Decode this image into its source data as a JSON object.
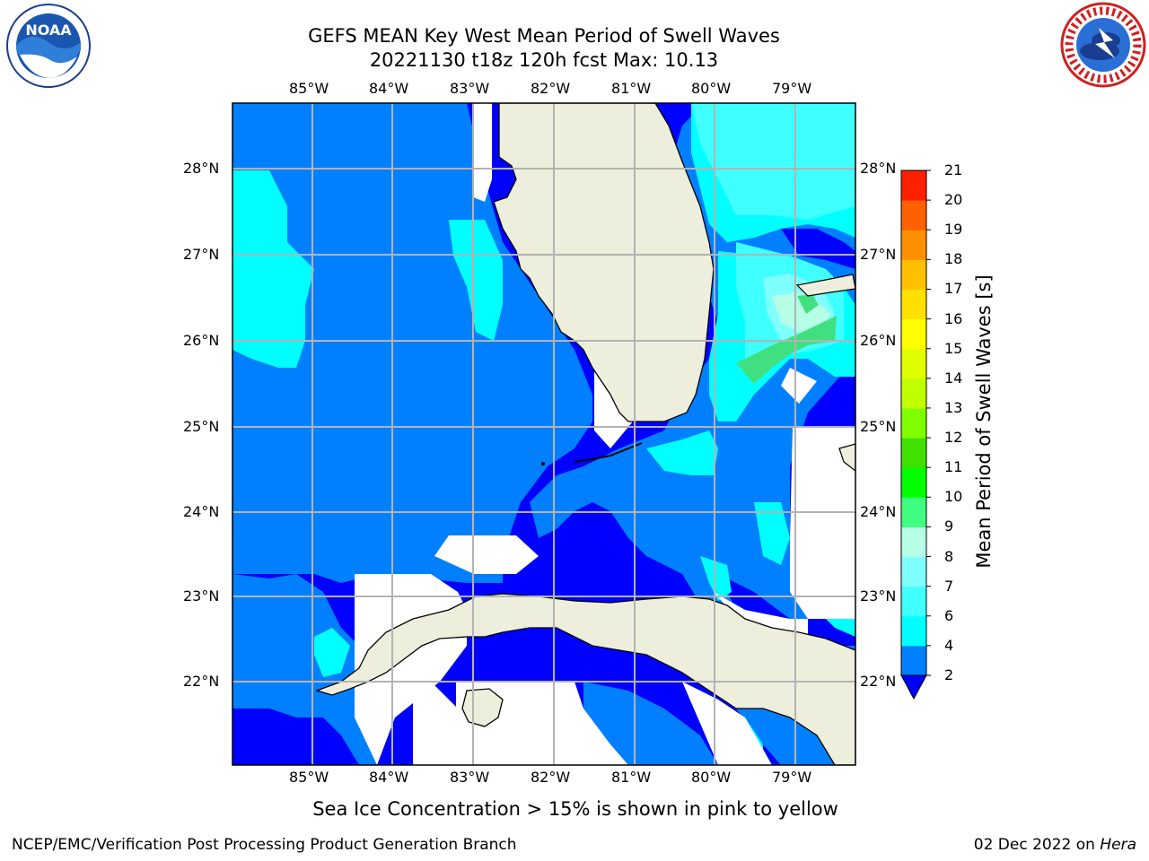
{
  "header": {
    "title_line1": "GEFS MEAN Key West Mean Period of Swell Waves",
    "title_line2": "20221130 t18z 120h fcst   Max: 10.13"
  },
  "logos": {
    "noaa": {
      "text": "NOAA",
      "ring_text": "NATIONAL OCEANIC AND ATMOSPHERIC ADMINISTRATION · U.S. DEPARTMENT OF COMMERCE"
    },
    "nws": {
      "ring_text": "NATIONAL WEATHER SERVICE"
    }
  },
  "map": {
    "extent": {
      "lon_min": -86.0,
      "lon_max": -78.25,
      "lat_min": 21.0,
      "lat_max": 28.75
    },
    "lon_ticks": [
      "85°W",
      "84°W",
      "83°W",
      "82°W",
      "81°W",
      "80°W",
      "79°W"
    ],
    "lat_ticks": [
      "28°N",
      "27°N",
      "26°N",
      "25°N",
      "24°N",
      "23°N",
      "22°N"
    ],
    "colors": {
      "land": "#eeeedd",
      "no_data": "#ffffff",
      "grid": "#b3b3b3"
    }
  },
  "colorbar": {
    "title": "Mean Period of Swell Waves [s]",
    "levels": [
      "2",
      "4",
      "6",
      "7",
      "8",
      "9",
      "10",
      "11",
      "12",
      "13",
      "14",
      "15",
      "16",
      "17",
      "18",
      "19",
      "20",
      "21"
    ],
    "colors": [
      "#0000ff",
      "#0080ff",
      "#00ffff",
      "#40ffff",
      "#80ffff",
      "#b4ffe6",
      "#40ff80",
      "#00ff00",
      "#40e000",
      "#80ff00",
      "#c0ff00",
      "#e0ff00",
      "#ffff00",
      "#ffe000",
      "#ffc000",
      "#ff9000",
      "#ff6000",
      "#ff2000",
      "#ff0000"
    ],
    "under_color": "#0000ff"
  },
  "note": "Sea Ice Concentration > 15% is shown in pink to yellow",
  "footer": {
    "left": "NCEP/EMC/Verification Post Processing Product Generation Branch",
    "date": "02 Dec 2022 on ",
    "host": "Hera"
  }
}
